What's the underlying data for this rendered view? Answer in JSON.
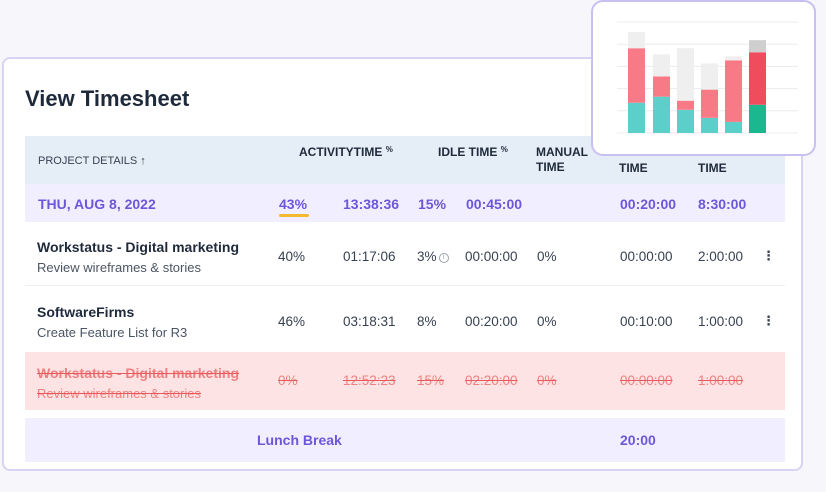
{
  "title": "View Timesheet",
  "header": {
    "project_details": "PROJECT DETAILS",
    "sort_arrow": "↑",
    "activity": "ACTIVITY",
    "time": "TIME",
    "time_pct": "%",
    "idle_time": "IDLE TIME",
    "idle_pct": "%",
    "manual": "MANUAL",
    "manual_time": "TIME",
    "col7_time": "TIME",
    "col8_time": "TIME"
  },
  "date_row": {
    "date": "THU, AUG 8, 2022",
    "activity": "43%",
    "time": "13:38:36",
    "idle_pct": "15%",
    "idle_time": "00:45:00",
    "col7": "00:20:00",
    "col8": "8:30:00"
  },
  "rows": [
    {
      "project": "Workstatus - Digital marketing",
      "task": "Review wireframes & stories",
      "activity": "40%",
      "time": "01:17:06",
      "idle_pct": "3%",
      "idle_time": "00:00:00",
      "manual_pct": "0%",
      "col7": "00:00:00",
      "col8": "2:00:00",
      "kebab": "⋮"
    },
    {
      "project": "SoftwareFirms",
      "task": "Create Feature List for R3",
      "activity": "46%",
      "time": "03:18:31",
      "idle_pct": "8%",
      "idle_time": "00:20:00",
      "manual_pct": "0%",
      "col7": "00:10:00",
      "col8": "1:00:00",
      "kebab": "⋮"
    },
    {
      "project": "Workstatus - Digital marketing",
      "task": "Review wireframes & stories",
      "activity": "0%",
      "time": "12:52:23",
      "idle_pct": "15%",
      "idle_time": "02:20:00",
      "manual_pct": "0%",
      "col7": "00:00:00",
      "col8": "1:00:00"
    }
  ],
  "lunch": {
    "label": "Lunch Break",
    "time": "20:00"
  },
  "colors": {
    "accent": "#6c57d9",
    "teal": "#5ccfcb",
    "pink": "#f87a86",
    "grey": "#efefef",
    "green": "#1bb78f",
    "red": "#ef4d5e"
  },
  "chart_data": {
    "type": "bar",
    "stacked": true,
    "categories": [
      "",
      "",
      "",
      "",
      "",
      ""
    ],
    "series": [
      {
        "values": [
          30,
          36,
          23,
          15,
          11,
          28
        ]
      },
      {
        "values": [
          54,
          20,
          9,
          28,
          61,
          52
        ]
      },
      {
        "values": [
          16,
          22,
          52,
          26,
          4,
          12
        ]
      }
    ],
    "ylim": [
      0,
      110
    ],
    "grid": true
  }
}
